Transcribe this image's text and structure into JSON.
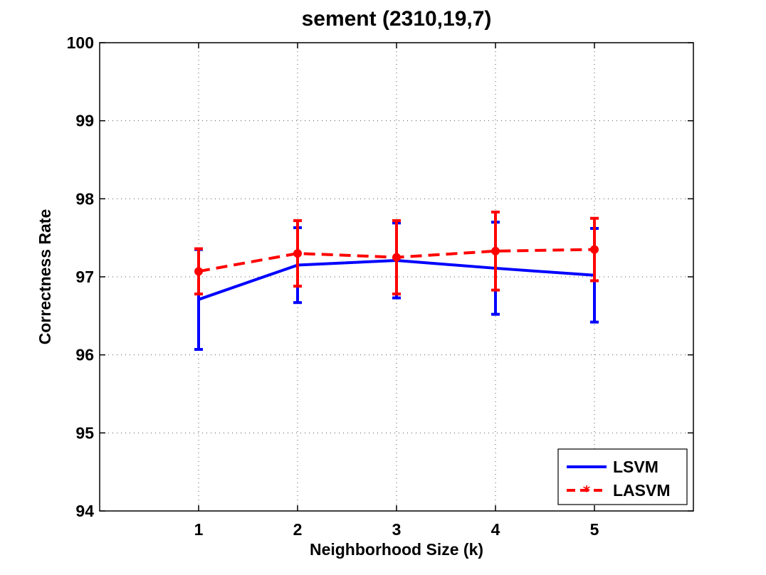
{
  "chart_data": {
    "type": "line",
    "title": "sement (2310,19,7)",
    "xlabel": "Neighborhood Size (k)",
    "ylabel": "Correctness Rate",
    "x": [
      1,
      2,
      3,
      4,
      5
    ],
    "xlim": [
      0,
      6
    ],
    "ylim": [
      94,
      100
    ],
    "xticks": [
      "1",
      "2",
      "3",
      "4",
      "5"
    ],
    "yticks": [
      "94",
      "95",
      "96",
      "97",
      "98",
      "99",
      "100"
    ],
    "grid": true,
    "legend_position": "bottom-right",
    "series": [
      {
        "name": "LSVM",
        "color": "#0000ff",
        "line_style": "solid",
        "marker": "none",
        "values": [
          96.71,
          97.15,
          97.21,
          97.11,
          97.02
        ],
        "error_low": [
          96.07,
          96.67,
          96.73,
          96.52,
          96.42
        ],
        "error_high": [
          97.35,
          97.63,
          97.69,
          97.7,
          97.62
        ]
      },
      {
        "name": "LASVM",
        "color": "#ff0000",
        "line_style": "dashed",
        "marker": "circle",
        "values": [
          97.07,
          97.3,
          97.25,
          97.33,
          97.35
        ],
        "error_low": [
          96.78,
          96.88,
          96.78,
          96.83,
          96.95
        ],
        "error_high": [
          97.36,
          97.72,
          97.72,
          97.83,
          97.75
        ]
      }
    ]
  }
}
